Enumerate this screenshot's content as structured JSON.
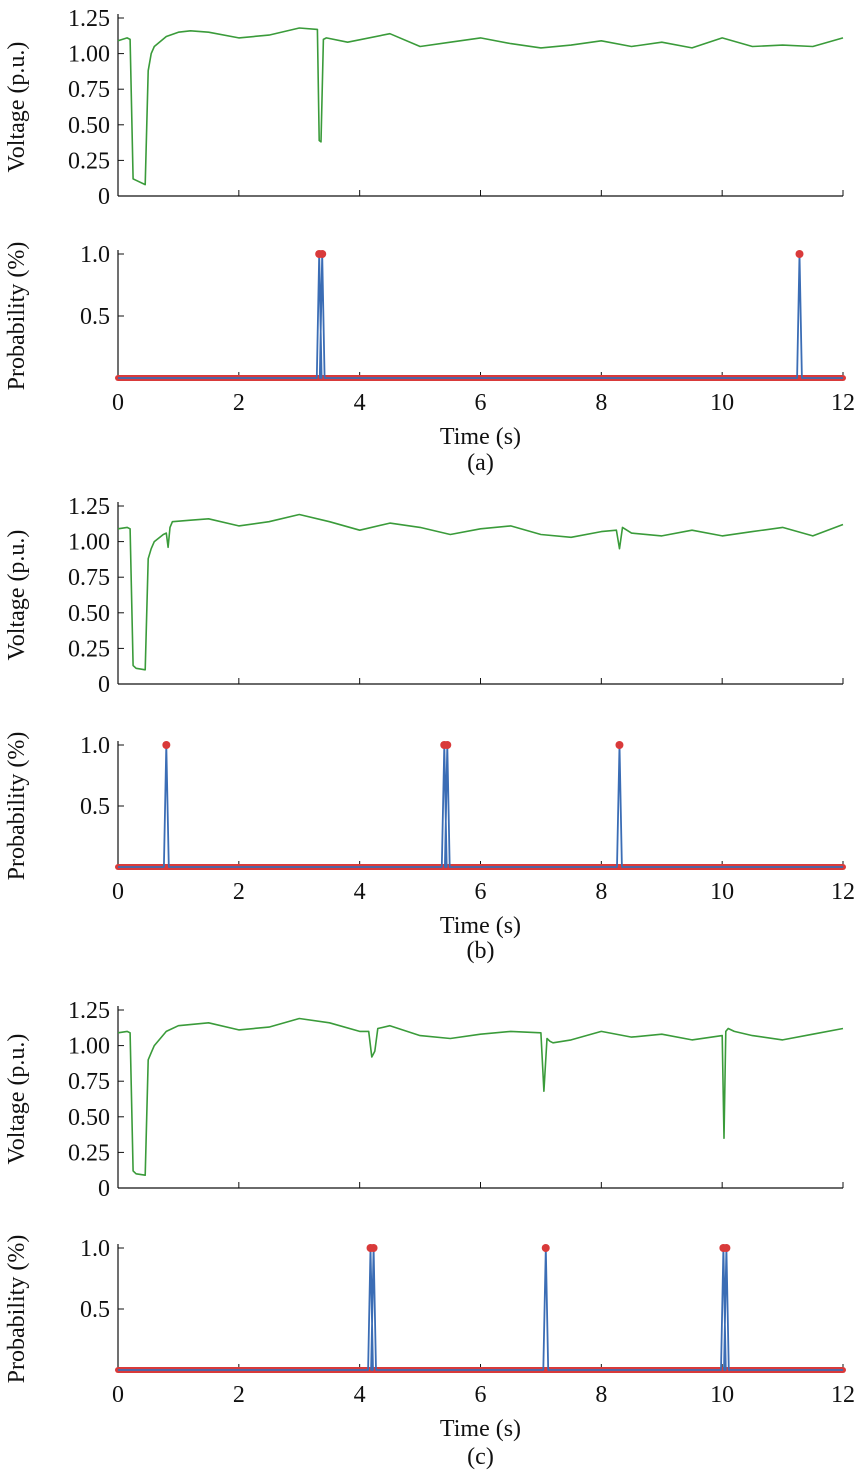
{
  "colors": {
    "voltage_line": "#3a9b3a",
    "probability_line": "#3b6db5",
    "marker": "#d93a3a",
    "axis": "#111111"
  },
  "chart_data": [
    {
      "panel": "(a)",
      "plot": "voltage",
      "type": "line",
      "ylabel": "Voltage (p.u.)",
      "xlim": [
        0,
        12
      ],
      "ylim": [
        0,
        1.25
      ],
      "yticks": [
        0,
        0.25,
        0.5,
        0.75,
        1.0,
        1.25
      ],
      "ytick_labels": [
        "0",
        "0.25",
        "0.50",
        "0.75",
        "1.00",
        "1.25"
      ],
      "xticks": [
        0,
        2,
        4,
        6,
        8,
        10,
        12
      ],
      "series": [
        {
          "x": [
            0,
            0.15,
            0.2,
            0.25,
            0.3,
            0.45,
            0.5,
            0.55,
            0.6,
            0.8,
            1.0,
            1.2,
            1.5,
            2.0,
            2.5,
            3.0,
            3.3,
            3.33,
            3.36,
            3.4,
            3.45,
            3.8,
            4.5,
            5.0,
            5.5,
            6.0,
            6.5,
            7.0,
            7.5,
            8.0,
            8.5,
            9.0,
            9.5,
            10.0,
            10.5,
            11.0,
            11.5,
            12.0
          ],
          "y": [
            1.09,
            1.11,
            1.1,
            0.12,
            0.11,
            0.08,
            0.88,
            1.0,
            1.05,
            1.12,
            1.15,
            1.16,
            1.15,
            1.11,
            1.13,
            1.18,
            1.17,
            0.39,
            0.38,
            1.1,
            1.11,
            1.08,
            1.14,
            1.05,
            1.08,
            1.11,
            1.07,
            1.04,
            1.06,
            1.09,
            1.05,
            1.08,
            1.04,
            1.11,
            1.05,
            1.06,
            1.05,
            1.11
          ]
        }
      ]
    },
    {
      "panel": "(a)",
      "plot": "probability",
      "type": "line",
      "ylabel": "Probability (%)",
      "xlabel": "Time (s)",
      "caption": "(a)",
      "xlim": [
        0,
        12
      ],
      "ylim": [
        0,
        1.0
      ],
      "yticks": [
        0.5,
        1.0
      ],
      "ytick_labels": [
        "0.5",
        "1.0"
      ],
      "xticks": [
        0,
        2,
        4,
        6,
        8,
        10,
        12
      ],
      "xtick_labels": [
        "0",
        "2",
        "4",
        "6",
        "8",
        "10",
        "12"
      ],
      "peaks": [
        3.33,
        3.38,
        11.28
      ]
    },
    {
      "panel": "(b)",
      "plot": "voltage",
      "type": "line",
      "ylabel": "Voltage (p.u.)",
      "xlim": [
        0,
        12
      ],
      "ylim": [
        0,
        1.25
      ],
      "yticks": [
        0,
        0.25,
        0.5,
        0.75,
        1.0,
        1.25
      ],
      "ytick_labels": [
        "0",
        "0.25",
        "0.50",
        "0.75",
        "1.00",
        "1.25"
      ],
      "xticks": [
        0,
        2,
        4,
        6,
        8,
        10,
        12
      ],
      "series": [
        {
          "x": [
            0,
            0.15,
            0.2,
            0.25,
            0.3,
            0.45,
            0.5,
            0.55,
            0.6,
            0.75,
            0.8,
            0.83,
            0.86,
            0.9,
            1.2,
            1.5,
            2.0,
            2.5,
            3.0,
            3.5,
            4.0,
            4.5,
            5.0,
            5.5,
            6.0,
            6.5,
            7.0,
            7.5,
            8.0,
            8.25,
            8.3,
            8.35,
            8.5,
            9.0,
            9.5,
            10.0,
            10.5,
            11.0,
            11.5,
            12.0
          ],
          "y": [
            1.09,
            1.1,
            1.09,
            0.13,
            0.11,
            0.1,
            0.88,
            0.95,
            1.0,
            1.05,
            1.06,
            0.96,
            1.1,
            1.14,
            1.15,
            1.16,
            1.11,
            1.14,
            1.19,
            1.14,
            1.08,
            1.13,
            1.1,
            1.05,
            1.09,
            1.11,
            1.05,
            1.03,
            1.07,
            1.08,
            0.95,
            1.1,
            1.06,
            1.04,
            1.08,
            1.04,
            1.07,
            1.1,
            1.04,
            1.12
          ]
        }
      ]
    },
    {
      "panel": "(b)",
      "plot": "probability",
      "type": "line",
      "ylabel": "Probability (%)",
      "xlabel": "Time (s)",
      "caption": "(b)",
      "xlim": [
        0,
        12
      ],
      "ylim": [
        0,
        1.0
      ],
      "yticks": [
        0.5,
        1.0
      ],
      "ytick_labels": [
        "0.5",
        "1.0"
      ],
      "xticks": [
        0,
        2,
        4,
        6,
        8,
        10,
        12
      ],
      "xtick_labels": [
        "0",
        "2",
        "4",
        "6",
        "8",
        "10",
        "12"
      ],
      "peaks": [
        0.8,
        5.4,
        5.45,
        8.3
      ]
    },
    {
      "panel": "(c)",
      "plot": "voltage",
      "type": "line",
      "ylabel": "Voltage (p.u.)",
      "xlim": [
        0,
        12
      ],
      "ylim": [
        0,
        1.25
      ],
      "yticks": [
        0,
        0.25,
        0.5,
        0.75,
        1.0,
        1.25
      ],
      "ytick_labels": [
        "0",
        "0.25",
        "0.50",
        "0.75",
        "1.00",
        "1.25"
      ],
      "xticks": [
        0,
        2,
        4,
        6,
        8,
        10,
        12
      ],
      "series": [
        {
          "x": [
            0,
            0.15,
            0.2,
            0.25,
            0.3,
            0.45,
            0.5,
            0.55,
            0.6,
            0.8,
            1.0,
            1.5,
            2.0,
            2.5,
            3.0,
            3.5,
            4.0,
            4.15,
            4.2,
            4.25,
            4.3,
            4.5,
            5.0,
            5.5,
            6.0,
            6.5,
            7.0,
            7.05,
            7.1,
            7.15,
            7.2,
            7.5,
            8.0,
            8.5,
            9.0,
            9.5,
            10.0,
            10.03,
            10.06,
            10.1,
            10.2,
            10.5,
            11.0,
            11.5,
            12.0
          ],
          "y": [
            1.09,
            1.1,
            1.09,
            0.12,
            0.1,
            0.09,
            0.9,
            0.95,
            1.0,
            1.1,
            1.14,
            1.16,
            1.11,
            1.13,
            1.19,
            1.16,
            1.1,
            1.1,
            0.92,
            0.96,
            1.12,
            1.14,
            1.07,
            1.05,
            1.08,
            1.1,
            1.09,
            0.68,
            1.05,
            1.03,
            1.02,
            1.04,
            1.1,
            1.06,
            1.08,
            1.04,
            1.07,
            0.35,
            1.1,
            1.12,
            1.1,
            1.07,
            1.04,
            1.08,
            1.12
          ]
        }
      ]
    },
    {
      "panel": "(c)",
      "plot": "probability",
      "type": "line",
      "ylabel": "Probability (%)",
      "xlabel": "Time (s)",
      "caption": "(c)",
      "xlim": [
        0,
        12
      ],
      "ylim": [
        0,
        1.0
      ],
      "yticks": [
        0.5,
        1.0
      ],
      "ytick_labels": [
        "0.5",
        "1.0"
      ],
      "xticks": [
        0,
        2,
        4,
        6,
        8,
        10,
        12
      ],
      "xtick_labels": [
        "0",
        "2",
        "4",
        "6",
        "8",
        "10",
        "12"
      ],
      "peaks": [
        4.18,
        4.23,
        7.08,
        10.02,
        10.07
      ]
    }
  ]
}
